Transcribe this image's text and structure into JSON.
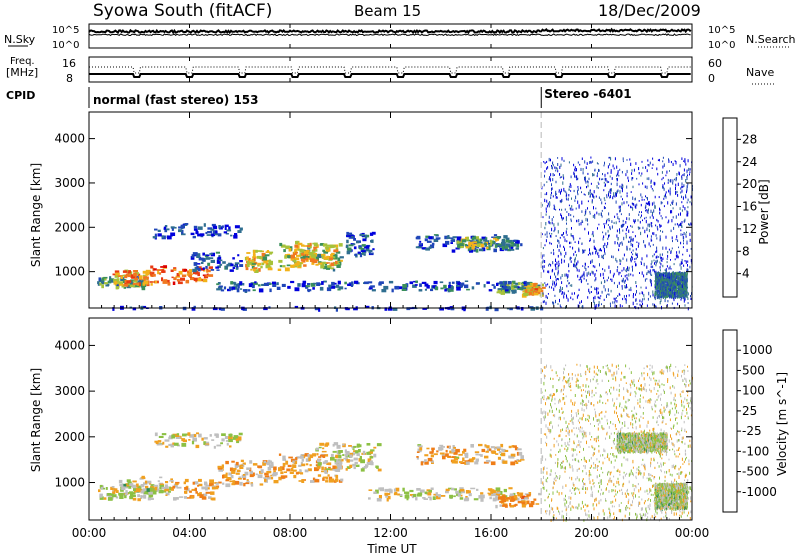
{
  "header": {
    "station": "Syowa South (fitACF)",
    "beam": "Beam 15",
    "date": "18/Dec/2009"
  },
  "noise_panel": {
    "left_label": "N.Sky",
    "right_label": "N.Search",
    "tick_top": "10^5",
    "tick_bottom": "10^0",
    "right_tick_top": "10^5",
    "right_tick_bottom": "10^0"
  },
  "freq_panel": {
    "left_label_line1": "Freq.",
    "left_label_line2": "[MHz]",
    "left_tick_top": "16",
    "left_tick_bottom": "8",
    "right_tick_top": "60",
    "right_tick_bottom": "0",
    "right_label": "Nave"
  },
  "cpid": {
    "label": "CPID",
    "mode1": "normal (fast stereo) 153",
    "mode2": "Stereo -6401",
    "mode2_start_hour": 18.0
  },
  "axes": {
    "ylabel": "Slant Range [km]",
    "xlabel": "Time UT",
    "yticks": [
      "1000",
      "2000",
      "3000",
      "4000"
    ],
    "ytick_values": [
      1000,
      2000,
      3000,
      4000
    ],
    "xticks": [
      "00:00",
      "04:00",
      "08:00",
      "12:00",
      "16:00",
      "20:00",
      "00:00"
    ],
    "xtick_values": [
      0,
      4,
      8,
      12,
      16,
      20,
      24
    ],
    "ylim": [
      180,
      4600
    ],
    "xlim": [
      0,
      24
    ]
  },
  "colors": {
    "power": [
      "#0000dd",
      "#1f46b8",
      "#2f6e90",
      "#3a8f5a",
      "#a6c23a",
      "#f2b21a",
      "#f07820",
      "#e83a12",
      "#dd0000"
    ],
    "velocity": [
      "#2a3fb8",
      "#2f6ea8",
      "#2e8c52",
      "#8cc044",
      "#bfbfbf",
      "#f0a020",
      "#ef7d17",
      "#e24a10",
      "#dd0000"
    ]
  },
  "chart_data": [
    {
      "type": "heatmap",
      "title": "",
      "quantity": "Power",
      "xlabel": "Time UT",
      "ylabel": "Slant Range [km]",
      "xlim": [
        0,
        24
      ],
      "ylim": [
        180,
        4600
      ],
      "colorbar": {
        "label": "Power [dB]",
        "ticks": [
          "4",
          "8",
          "12",
          "16",
          "20",
          "24",
          "28"
        ],
        "range": [
          0,
          30
        ]
      },
      "features": [
        {
          "t0": 0.0,
          "t1": 18.0,
          "r0": 180,
          "r1": 230,
          "value": 3
        },
        {
          "t0": 0.3,
          "t1": 2.2,
          "r0": 650,
          "r1": 900,
          "value": 11
        },
        {
          "t0": 0.9,
          "t1": 2.5,
          "r0": 720,
          "r1": 1050,
          "value": 20
        },
        {
          "t0": 2.4,
          "t1": 4.8,
          "r0": 750,
          "r1": 1150,
          "value": 23
        },
        {
          "t0": 4.0,
          "t1": 6.0,
          "r0": 1050,
          "r1": 1450,
          "value": 6
        },
        {
          "t0": 6.2,
          "t1": 7.2,
          "r0": 1050,
          "r1": 1500,
          "value": 17
        },
        {
          "t0": 7.5,
          "t1": 10.0,
          "r0": 1050,
          "r1": 1650,
          "value": 14
        },
        {
          "t0": 8.0,
          "t1": 9.8,
          "r0": 1150,
          "r1": 1700,
          "value": 18
        },
        {
          "t0": 10.2,
          "t1": 11.3,
          "r0": 1400,
          "r1": 1900,
          "value": 6
        },
        {
          "t0": 13.0,
          "t1": 17.2,
          "r0": 1500,
          "r1": 1850,
          "value": 6
        },
        {
          "t0": 14.6,
          "t1": 16.8,
          "r0": 1550,
          "r1": 1800,
          "value": 14
        },
        {
          "t0": 16.2,
          "t1": 17.9,
          "r0": 550,
          "r1": 800,
          "value": 11
        },
        {
          "t0": 17.2,
          "t1": 18.0,
          "r0": 500,
          "r1": 750,
          "value": 19
        },
        {
          "t0": 5.0,
          "t1": 17.5,
          "r0": 600,
          "r1": 800,
          "value": 6
        },
        {
          "t0": 2.5,
          "t1": 6.0,
          "r0": 1800,
          "r1": 2100,
          "value": 5
        },
        {
          "t0": 18.0,
          "t1": 24.0,
          "r0": 200,
          "r1": 3600,
          "value": 3
        },
        {
          "t0": 22.5,
          "t1": 23.8,
          "r0": 450,
          "r1": 1000,
          "value": 8
        }
      ]
    },
    {
      "type": "heatmap",
      "title": "",
      "quantity": "Velocity",
      "xlabel": "Time UT",
      "ylabel": "Slant Range [km]",
      "xlim": [
        0,
        24
      ],
      "ylim": [
        180,
        4600
      ],
      "colorbar": {
        "label": "Velocity [m s^-1]",
        "ticks": [
          "1000",
          "500",
          "100",
          "25",
          "-25",
          "-100",
          "-500",
          "-1000"
        ],
        "range": [
          -1200,
          1200
        ]
      },
      "features": [
        {
          "t0": 0.3,
          "t1": 2.4,
          "r0": 650,
          "r1": 950,
          "value": 80
        },
        {
          "t0": 0.9,
          "t1": 3.2,
          "r0": 700,
          "r1": 1150,
          "value": 60
        },
        {
          "t0": 3.0,
          "t1": 5.0,
          "r0": 650,
          "r1": 1100,
          "value": -300
        },
        {
          "t0": 5.0,
          "t1": 7.4,
          "r0": 950,
          "r1": 1500,
          "value": -250
        },
        {
          "t0": 7.5,
          "t1": 10.0,
          "r0": 1050,
          "r1": 1650,
          "value": -250
        },
        {
          "t0": 9.0,
          "t1": 11.5,
          "r0": 1300,
          "r1": 1900,
          "value": 60
        },
        {
          "t0": 13.0,
          "t1": 17.2,
          "r0": 1450,
          "r1": 1850,
          "value": -200
        },
        {
          "t0": 11.0,
          "t1": 17.0,
          "r0": 650,
          "r1": 900,
          "value": 0
        },
        {
          "t0": 16.0,
          "t1": 17.9,
          "r0": 500,
          "r1": 800,
          "value": -400
        },
        {
          "t0": 2.5,
          "t1": 6.0,
          "r0": 1800,
          "r1": 2100,
          "value": 0
        },
        {
          "t0": 18.0,
          "t1": 24.0,
          "r0": 200,
          "r1": 3600,
          "value": 0
        },
        {
          "t0": 22.5,
          "t1": 23.8,
          "r0": 450,
          "r1": 1000,
          "value": 120
        },
        {
          "t0": 21.0,
          "t1": 23.0,
          "r0": 1700,
          "r1": 2100,
          "value": 120
        }
      ]
    }
  ]
}
